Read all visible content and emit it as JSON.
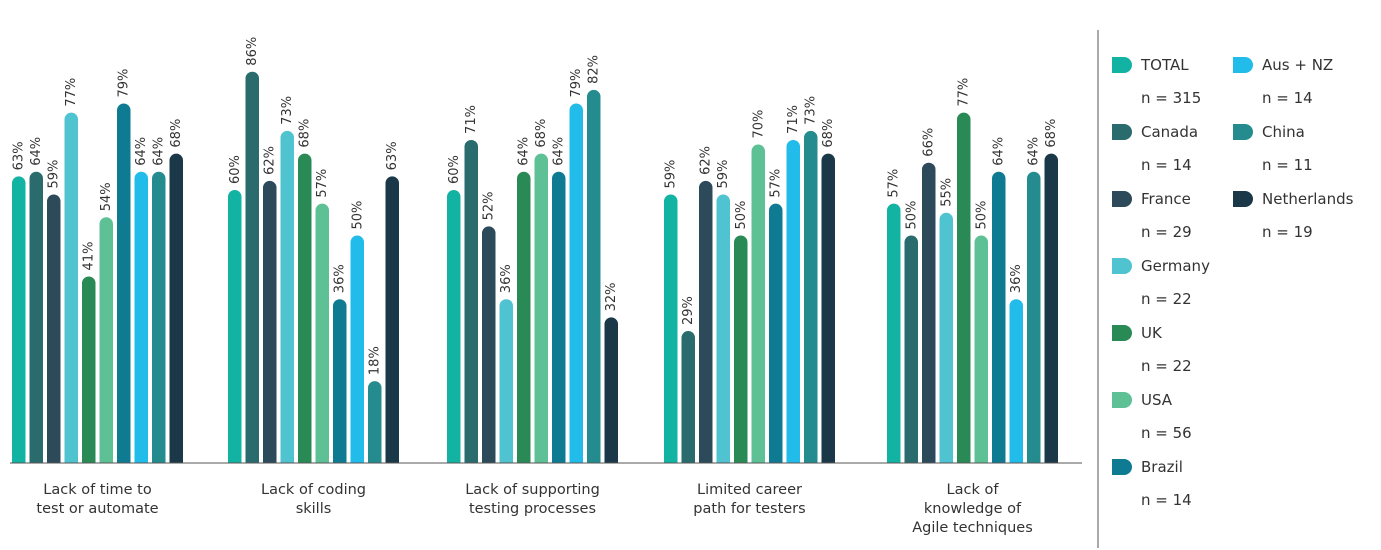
{
  "chart_data": {
    "type": "bar",
    "title": "",
    "xlabel": "",
    "ylabel": "",
    "ylim": [
      0,
      100
    ],
    "grid": false,
    "legend_position": "right",
    "categories": [
      [
        "Lack of time to",
        "test or automate"
      ],
      [
        "Lack of coding",
        "skills"
      ],
      [
        "Lack of supporting",
        "testing processes"
      ],
      [
        "Limited career",
        "path for testers"
      ],
      [
        "Lack of",
        "knowledge of",
        "Agile techniques"
      ]
    ],
    "series": [
      {
        "name": "TOTAL",
        "n": "n = 315",
        "color": "#12B3A3",
        "values": [
          63,
          60,
          60,
          59,
          57
        ]
      },
      {
        "name": "Canada",
        "n": "n = 14",
        "color": "#2A6B6E",
        "values": [
          64,
          86,
          71,
          29,
          50
        ]
      },
      {
        "name": "France",
        "n": "n = 29",
        "color": "#2C4A5A",
        "values": [
          59,
          62,
          52,
          62,
          66
        ]
      },
      {
        "name": "Germany",
        "n": "n = 22",
        "color": "#4FC3CF",
        "values": [
          77,
          73,
          36,
          59,
          55
        ]
      },
      {
        "name": "UK",
        "n": "n = 22",
        "color": "#2A8A55",
        "values": [
          41,
          68,
          64,
          50,
          77
        ]
      },
      {
        "name": "USA",
        "n": "n = 56",
        "color": "#5DC195",
        "values": [
          54,
          57,
          68,
          70,
          50
        ]
      },
      {
        "name": "Brazil",
        "n": "n = 14",
        "color": "#0F7B93",
        "values": [
          79,
          36,
          64,
          57,
          64
        ]
      },
      {
        "name": "Aus + NZ",
        "n": "n = 14",
        "color": "#21BCEA",
        "values": [
          64,
          50,
          79,
          71,
          36
        ]
      },
      {
        "name": "China",
        "n": "n = 11",
        "color": "#248C8E",
        "values": [
          64,
          18,
          82,
          73,
          64
        ]
      },
      {
        "name": "Netherlands",
        "n": "n = 19",
        "color": "#1A3848",
        "values": [
          68,
          63,
          32,
          68,
          68
        ]
      }
    ]
  }
}
